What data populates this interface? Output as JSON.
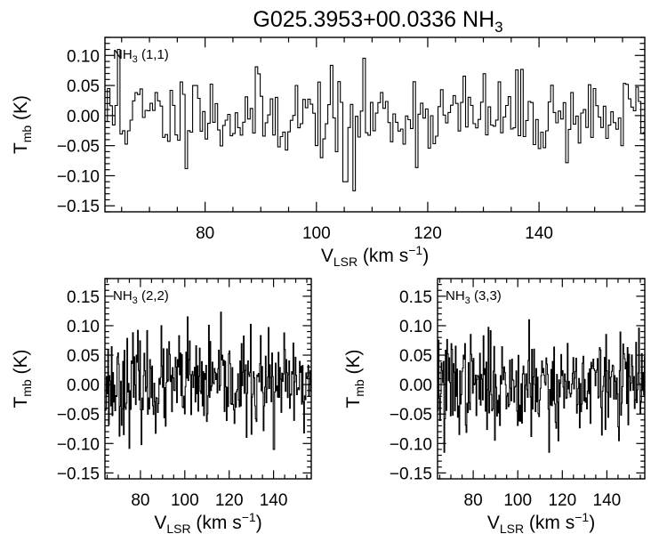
{
  "title": {
    "main": "G025.3953+00.0336 NH",
    "sub": "3"
  },
  "axis": {
    "ylabel_main": "T",
    "ylabel_sub": "mb",
    "ylabel_unit": " (K)",
    "xlabel_main": "V",
    "xlabel_sub": "LSR",
    "xlabel_unit": " (km s",
    "xlabel_sup": "−1",
    "xlabel_close": ")"
  },
  "chart_data": [
    {
      "type": "line",
      "name": "NH3 (1,1)",
      "label": {
        "main": "NH",
        "sub": "3",
        "rest": " (1,1)"
      },
      "xlim": [
        62,
        159
      ],
      "ylim": [
        -0.16,
        0.13
      ],
      "xticks": [
        80,
        100,
        120,
        140
      ],
      "yticks": [
        0.1,
        0.05,
        0.0,
        -0.05,
        -0.1,
        -0.15
      ],
      "ytick_labels": [
        "0.10",
        "0.05",
        "0.00",
        "−0.05",
        "−0.10",
        "−0.15"
      ],
      "noise_rms": 0.035,
      "seed": 11,
      "features": [
        {
          "x": 64.2,
          "y": 0.11
        },
        {
          "x": 105.0,
          "y": -0.11
        },
        {
          "x": 106.5,
          "y": -0.125
        },
        {
          "x": 78.0,
          "y": 0.05
        }
      ]
    },
    {
      "type": "line",
      "name": "NH3 (2,2)",
      "label": {
        "main": "NH",
        "sub": "3",
        "rest": " (2,2)"
      },
      "xlim": [
        64,
        157
      ],
      "ylim": [
        -0.16,
        0.18
      ],
      "xticks": [
        80,
        100,
        120,
        140
      ],
      "yticks": [
        0.15,
        0.1,
        0.05,
        0.0,
        -0.05,
        -0.1,
        -0.15
      ],
      "ytick_labels": [
        "0.15",
        "0.10",
        "0.05",
        "0.00",
        "−0.05",
        "−0.10",
        "−0.15"
      ],
      "noise_rms": 0.04,
      "seed": 23,
      "features": [
        {
          "x": 101.0,
          "y": 0.115
        },
        {
          "x": 140.0,
          "y": -0.11
        }
      ]
    },
    {
      "type": "line",
      "name": "NH3 (3,3)",
      "label": {
        "main": "NH",
        "sub": "3",
        "rest": " (3,3)"
      },
      "xlim": [
        64,
        157
      ],
      "ylim": [
        -0.16,
        0.18
      ],
      "xticks": [
        80,
        100,
        120,
        140
      ],
      "yticks": [
        0.15,
        0.1,
        0.05,
        0.0,
        -0.05,
        -0.1,
        -0.15
      ],
      "ytick_labels": [
        "0.15",
        "0.10",
        "0.05",
        "0.00",
        "−0.05",
        "−0.10",
        "−0.15"
      ],
      "noise_rms": 0.04,
      "seed": 37,
      "features": [
        {
          "x": 67.0,
          "y": -0.115
        },
        {
          "x": 105.0,
          "y": 0.11
        },
        {
          "x": 114.0,
          "y": -0.115
        }
      ]
    }
  ]
}
